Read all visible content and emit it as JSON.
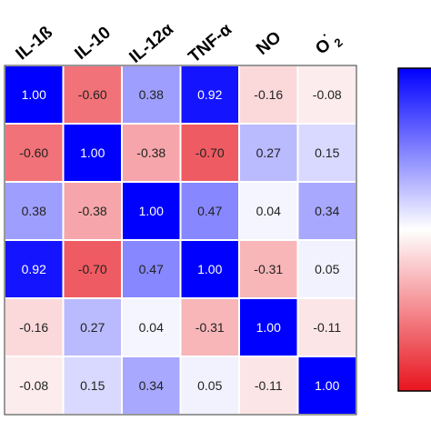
{
  "chart_data": {
    "type": "heatmap",
    "variables": [
      "IL-1ß",
      "IL-10",
      "IL-12α",
      "TNF-α",
      "NO",
      "O·2"
    ],
    "column_labels": [
      {
        "text": "IL-1ß"
      },
      {
        "text": "IL-10"
      },
      {
        "text": "IL-12α"
      },
      {
        "text": "TNF-α"
      },
      {
        "text": "NO"
      },
      {
        "text": "O",
        "sup": "·",
        "sub": "2"
      }
    ],
    "matrix": [
      [
        1.0,
        -0.6,
        0.38,
        0.92,
        -0.16,
        -0.08
      ],
      [
        -0.6,
        1.0,
        -0.38,
        -0.7,
        0.27,
        0.15
      ],
      [
        0.38,
        -0.38,
        1.0,
        0.47,
        0.04,
        0.34
      ],
      [
        0.92,
        -0.7,
        0.47,
        1.0,
        -0.31,
        0.05
      ],
      [
        -0.16,
        0.27,
        0.04,
        -0.31,
        1.0,
        -0.11
      ],
      [
        -0.08,
        0.15,
        0.34,
        0.05,
        -0.11,
        1.0
      ]
    ],
    "value_range": [
      -1,
      1
    ],
    "colorscale": {
      "negative": "#e8141e",
      "zero": "#ffffff",
      "positive": "#0000ff"
    },
    "colorbar": {
      "position": "right",
      "labels_visible": false
    }
  }
}
